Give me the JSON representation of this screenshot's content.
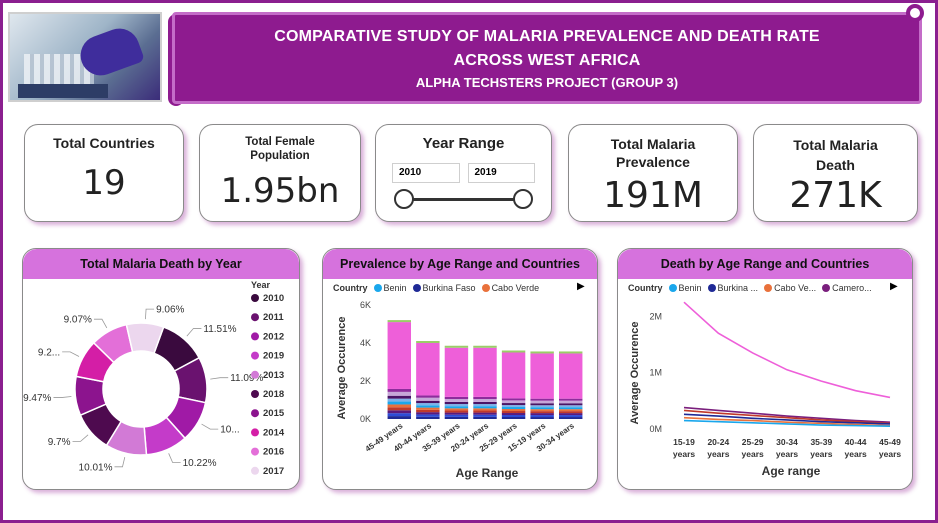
{
  "header": {
    "title_line1": "COMPARATIVE STUDY OF MALARIA PREVALENCE  AND DEATH RATE",
    "title_line2": "ACROSS WEST AFRICA",
    "subtitle": "ALPHA TECHSTERS PROJECT (GROUP 3)"
  },
  "kpis": {
    "countries": {
      "label": "Total Countries",
      "value": "19"
    },
    "female": {
      "label": "Total Female Population",
      "value": "1.95bn"
    },
    "year_range": {
      "label": "Year Range",
      "from": "2010",
      "to": "2019"
    },
    "prevalence": {
      "label": "Total Malaria Prevalence",
      "value": "191M"
    },
    "death": {
      "label": "Total Malaria Death",
      "value": "271K"
    }
  },
  "donut": {
    "title": "Total Malaria Death by Year",
    "legend_title": "Year",
    "years": [
      "2010",
      "2011",
      "2012",
      "2019",
      "2013",
      "2018",
      "2015",
      "2014",
      "2016",
      "2017"
    ],
    "colors": [
      "#3a0a3e",
      "#6a126f",
      "#a01aa6",
      "#c43bc9",
      "#d27ad6",
      "#4e0a4f",
      "#8c148e",
      "#d41ea6",
      "#e36fd8",
      "#ecd7ee"
    ],
    "labels": [
      "11.51%",
      "11.09%",
      "10...",
      "10.22%",
      "10.01%",
      "9.7%",
      "9.47%",
      "9.2...",
      "9.07%",
      "9.06%"
    ]
  },
  "chart_data": [
    {
      "type": "bar",
      "title": "Prevalence by Age Range and Countries",
      "legend_title": "Country",
      "legend": [
        "Benin",
        "Burkina Faso",
        "Cabo Verde"
      ],
      "legend_colors": [
        "#1aa7ec",
        "#1f2a96",
        "#e9713b"
      ],
      "xlabel": "Age Range",
      "ylabel": "Average Occurence",
      "categories": [
        "45-49 years",
        "40-44 years",
        "35-39 years",
        "20-24 years",
        "25-29 years",
        "15-19 years",
        "30-34 years"
      ],
      "values": [
        5100,
        4000,
        3750,
        3750,
        3500,
        3450,
        3450
      ],
      "ylim": [
        0,
        6000
      ],
      "yticks": [
        "0K",
        "2K",
        "4K",
        "6K"
      ]
    },
    {
      "type": "line",
      "title": "Death by Age Range and Countries",
      "legend_title": "Country",
      "legend": [
        "Benin",
        "Burkina ...",
        "Cabo Ve...",
        "Camero..."
      ],
      "legend_colors": [
        "#1aa7ec",
        "#1f2a96",
        "#e9713b",
        "#7a1f7d"
      ],
      "xlabel": "Age range",
      "ylabel": "Average Occurence",
      "categories": [
        "15-19 years",
        "20-24 years",
        "25-29 years",
        "30-34 years",
        "35-39 years",
        "40-44 years",
        "45-49 years"
      ],
      "ylim": [
        0,
        2200000
      ],
      "yticks": [
        "0M",
        "1M",
        "2M"
      ],
      "series": [
        {
          "color": "#ee5fd9",
          "values": [
            2250000,
            1700000,
            1350000,
            1050000,
            850000,
            680000,
            560000
          ]
        },
        {
          "color": "#7a1f7d",
          "values": [
            380000,
            330000,
            280000,
            230000,
            190000,
            150000,
            120000
          ]
        },
        {
          "color": "#c0392b",
          "values": [
            330000,
            280000,
            240000,
            200000,
            160000,
            130000,
            100000
          ]
        },
        {
          "color": "#1f2a96",
          "values": [
            260000,
            230000,
            190000,
            160000,
            130000,
            110000,
            90000
          ]
        },
        {
          "color": "#e9713b",
          "values": [
            200000,
            170000,
            150000,
            120000,
            100000,
            80000,
            60000
          ]
        },
        {
          "color": "#1aa7ec",
          "values": [
            150000,
            130000,
            110000,
            90000,
            70000,
            60000,
            50000
          ]
        }
      ]
    }
  ]
}
